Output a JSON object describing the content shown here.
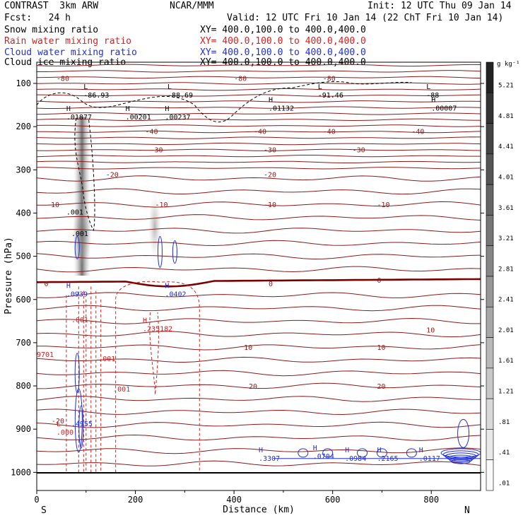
{
  "header": {
    "model": "CONTRAST  3km ARW",
    "org": "NCAR/MMM",
    "init": "Init: 12 UTC Thu 09 Jan 14",
    "fcst": "Fcst:   24 h",
    "valid": "Valid: 12 UTC Fri 10 Jan 14 (22 ChT Fri 10 Jan 14)"
  },
  "fields": [
    {
      "name": "Snow mixing ratio",
      "xy": "XY= 400.0,100.0 to 400.0,400.0",
      "color": "#000000"
    },
    {
      "name": "Rain water mixing ratio",
      "xy": "XY= 400.0,100.0 to 400.0,400.0",
      "color": "#d81e1e"
    },
    {
      "name": "Cloud water mixing ratio",
      "xy": "XY= 400.0,100.0 to 400.0,400.0",
      "color": "#1f2fd8"
    },
    {
      "name": "Cloud ice mixing ratio",
      "xy": "XY= 400.0,100.0 to 400.0,400.0",
      "color": "#000000"
    }
  ],
  "colors": {
    "temperature": "#8b1a1a",
    "freezing": "#7a0000",
    "rain": "#d81e1e",
    "cloud_water": "#1f2fd8",
    "ice": "#000000"
  },
  "chart_data": {
    "type": "cross-section",
    "xlabel": "Distance (km)",
    "ylabel": "Pressure (hPa)",
    "xlim": [
      0,
      900
    ],
    "ylim": [
      1050,
      50
    ],
    "x_ticks": [
      "0",
      "200",
      "400",
      "600",
      "800"
    ],
    "y_ticks": [
      "100",
      "200",
      "300",
      "400",
      "500",
      "600",
      "700",
      "800",
      "900",
      "1000"
    ],
    "end_labels": [
      "S",
      "N"
    ],
    "colorbar": {
      "unit": "g kg⁻¹",
      "ticks": [
        "5.21",
        "4.81",
        "4.41",
        "4.01",
        "3.61",
        "3.21",
        "2.81",
        "2.41",
        "2.01",
        "1.61",
        "1.21",
        ".81",
        ".41",
        ".01"
      ]
    },
    "temperature_labels": [
      "-80",
      "-80",
      "-80",
      "-40",
      "-40",
      "-40",
      "-40",
      "-30",
      "-30",
      "-30",
      "-20",
      "-20",
      "-10",
      "-10",
      "-10",
      "-10",
      "0",
      "0",
      "0",
      "10",
      "10",
      "10",
      "20",
      "20",
      "-20"
    ],
    "extrema_labels": [
      {
        "label": "L",
        "value": "-86.93"
      },
      {
        "label": "L",
        "value": "-88.69"
      },
      {
        "label": "L",
        "value": "-91.46"
      },
      {
        "label": "L",
        "value": "-88"
      },
      {
        "label": "H",
        "value": ".01877"
      },
      {
        "label": "H",
        "value": ".00201"
      },
      {
        "label": "H",
        "value": ".00237"
      },
      {
        "label": "H",
        "value": ".01132"
      },
      {
        "label": "H",
        "value": ".00007"
      },
      {
        "label": "",
        "value": ".001"
      },
      {
        "label": "",
        "value": ".001"
      },
      {
        "label": "H",
        "value": ".0939"
      },
      {
        "label": "H",
        "value": ".0402"
      },
      {
        "label": "H",
        "value": ".235182"
      },
      {
        "label": "",
        "value": ".001"
      },
      {
        "label": "",
        "value": ".001"
      },
      {
        "label": "",
        "value": ".001"
      },
      {
        "label": "",
        "value": "9701"
      },
      {
        "label": "",
        "value": ".4955"
      },
      {
        "label": "L",
        "value": ".000"
      },
      {
        "label": "H",
        "value": ".3307"
      },
      {
        "label": "H",
        "value": ".0704"
      },
      {
        "label": "H",
        "value": ".0984"
      },
      {
        "label": "H",
        "value": ".2165"
      },
      {
        "label": "H",
        "value": ".0117"
      }
    ]
  }
}
